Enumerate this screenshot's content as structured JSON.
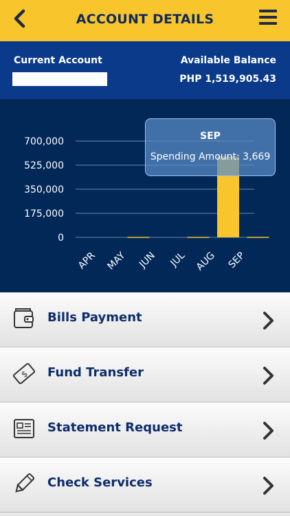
{
  "header": {
    "title": "ACCOUNT DETAILS",
    "back_icon": "chevron-left-icon",
    "menu_icon": "hamburger-menu-icon"
  },
  "account": {
    "label": "Current Account",
    "available_label": "Available Balance",
    "balance": "PHP 1,519,905.43"
  },
  "chart_data": {
    "type": "bar",
    "categories": [
      "APR",
      "MAY",
      "JUN",
      "JUL",
      "AUG",
      "SEP"
    ],
    "series": [
      {
        "values": [
          0,
          3669,
          0,
          3669,
          588000,
          3669
        ]
      }
    ],
    "y_ticks": [
      "700,000",
      "525,000",
      "350,000",
      "175,000",
      "0"
    ],
    "ylim": [
      0,
      700000
    ],
    "grid": true,
    "bar_color": "#f8c52c",
    "tooltip": {
      "month": "SEP",
      "text": "Spending Amount: 3,669"
    }
  },
  "menu": {
    "items": [
      {
        "label": "Bills Payment",
        "icon": "wallet-icon"
      },
      {
        "label": "Fund Transfer",
        "icon": "money-bill-icon"
      },
      {
        "label": "Statement Request",
        "icon": "newspaper-icon"
      },
      {
        "label": "Check Services",
        "icon": "pen-icon"
      }
    ]
  },
  "colors": {
    "header": "#f8c52c",
    "account_bar": "#0a3a89",
    "chart_bg": "#022858",
    "accent_text": "#0d2c6b"
  }
}
